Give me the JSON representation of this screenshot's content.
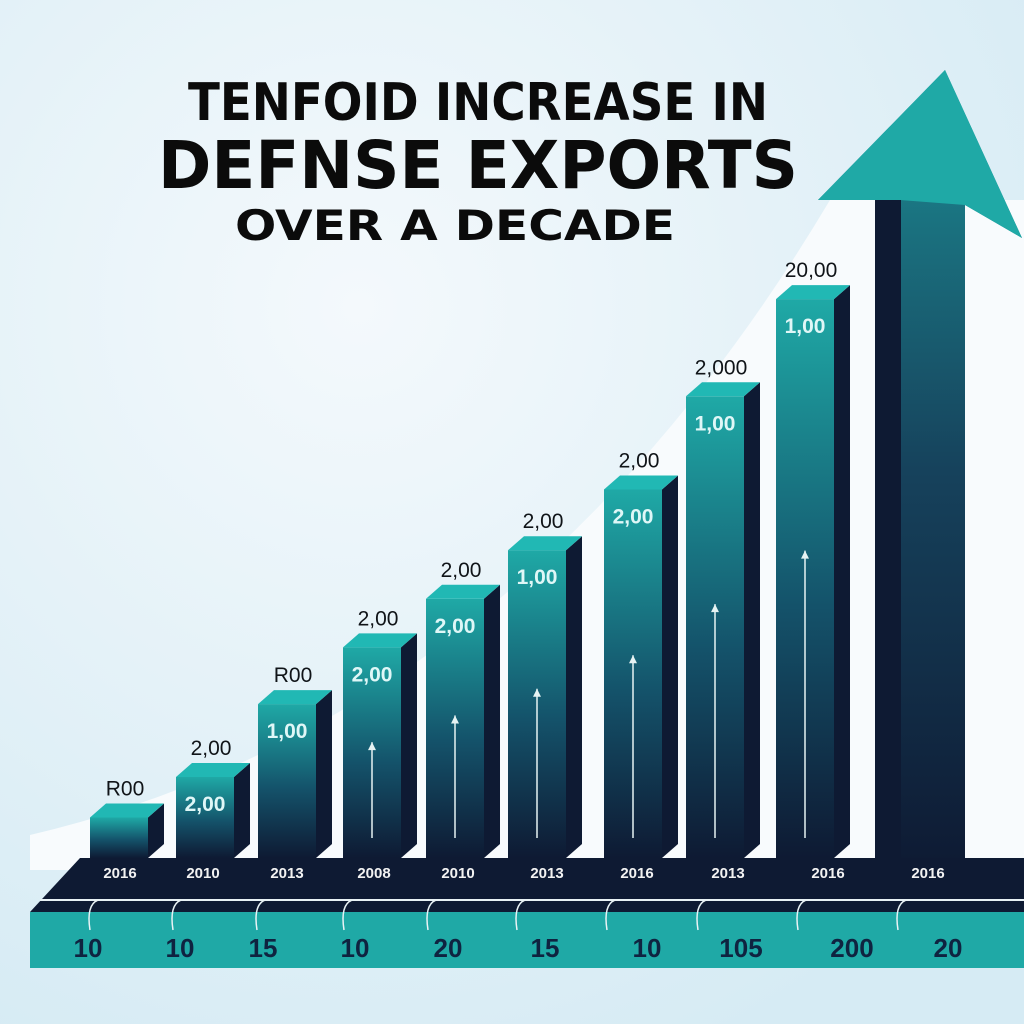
{
  "title": {
    "line1": "TENFOID INCREASE IN",
    "line2": "DEFNSE EXPORTS",
    "line3": "OVER A DECADE"
  },
  "colors": {
    "background": "#e7f3fa",
    "bar_top": "#1fa9a6",
    "bar_bottom": "#0e1a33",
    "arrow": "#1fa9a6",
    "platform": "#0e1a33",
    "baseline_band": "#1fa9a6"
  },
  "chart_data": {
    "type": "bar",
    "title": "TENFOID INCREASE IN DEFNSE EXPORTS OVER A DECADE",
    "categories": [
      "2016",
      "2010",
      "2013",
      "2008",
      "2010",
      "2013",
      "2016",
      "2013",
      "2016",
      "2016"
    ],
    "bottom_labels": [
      "10",
      "10",
      "15",
      "10",
      "20",
      "15",
      "10",
      "105",
      "200",
      "20"
    ],
    "series": [
      {
        "values": [
          1,
          2,
          3.8,
          5.2,
          6.4,
          7.6,
          9.1,
          11.4,
          13.8,
          100
        ],
        "labels_above": [
          "R00",
          "2,00",
          "R00",
          "2,00",
          "2,00",
          "2,00",
          "2,00",
          "2,000",
          "20,00",
          ""
        ],
        "labels_inside": [
          "",
          "2,00",
          "1,00",
          "2,00",
          "2,00",
          "1,00",
          "2,00",
          "1,00",
          "1,00",
          ""
        ]
      }
    ],
    "trend_arrow": true,
    "grid": false,
    "legend": "none"
  }
}
